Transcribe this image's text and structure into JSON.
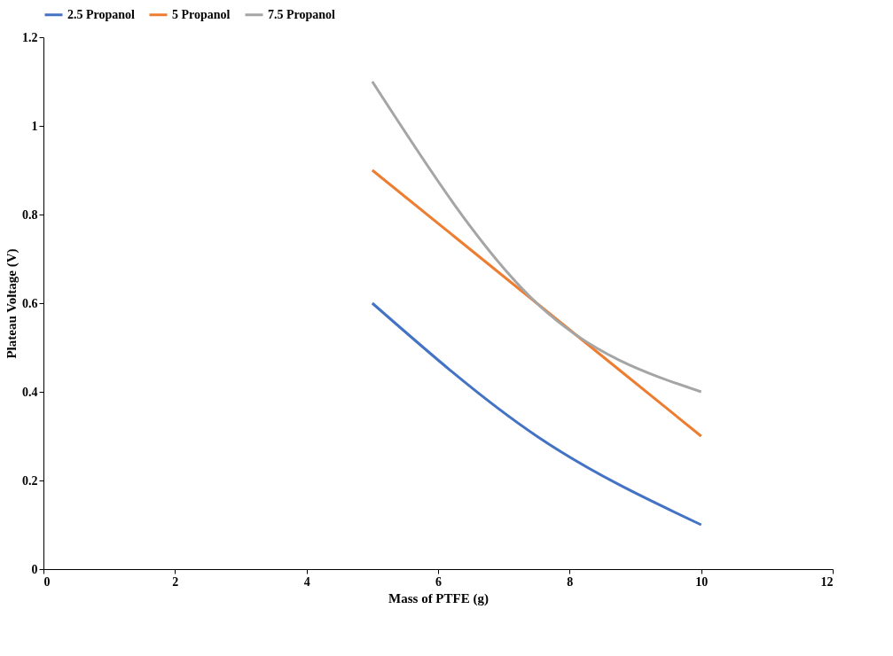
{
  "chart_data": {
    "type": "line",
    "xlabel": "Mass of PTFE (g)",
    "ylabel": "Plateau Voltage  (V)",
    "x": [
      5,
      7.5,
      10
    ],
    "series": [
      {
        "name": "2.5 Propanol",
        "color": "#4472c4",
        "values": [
          0.6,
          0.3,
          0.1
        ]
      },
      {
        "name": "5 Propanol",
        "color": "#ed7d31",
        "values": [
          0.9,
          0.6,
          0.3
        ]
      },
      {
        "name": "7.5 Propanol",
        "color": "#a5a5a5",
        "values": [
          1.1,
          0.6,
          0.4
        ]
      }
    ],
    "xlim": [
      0,
      12
    ],
    "xticks": [
      0,
      2,
      4,
      6,
      8,
      10,
      12
    ],
    "ylim": [
      0,
      1.2
    ],
    "yticks": [
      0,
      0.2,
      0.4,
      0.6,
      0.8,
      1,
      1.2
    ],
    "grid": false,
    "legend": "top",
    "marker": "none",
    "line_style": "solid"
  }
}
